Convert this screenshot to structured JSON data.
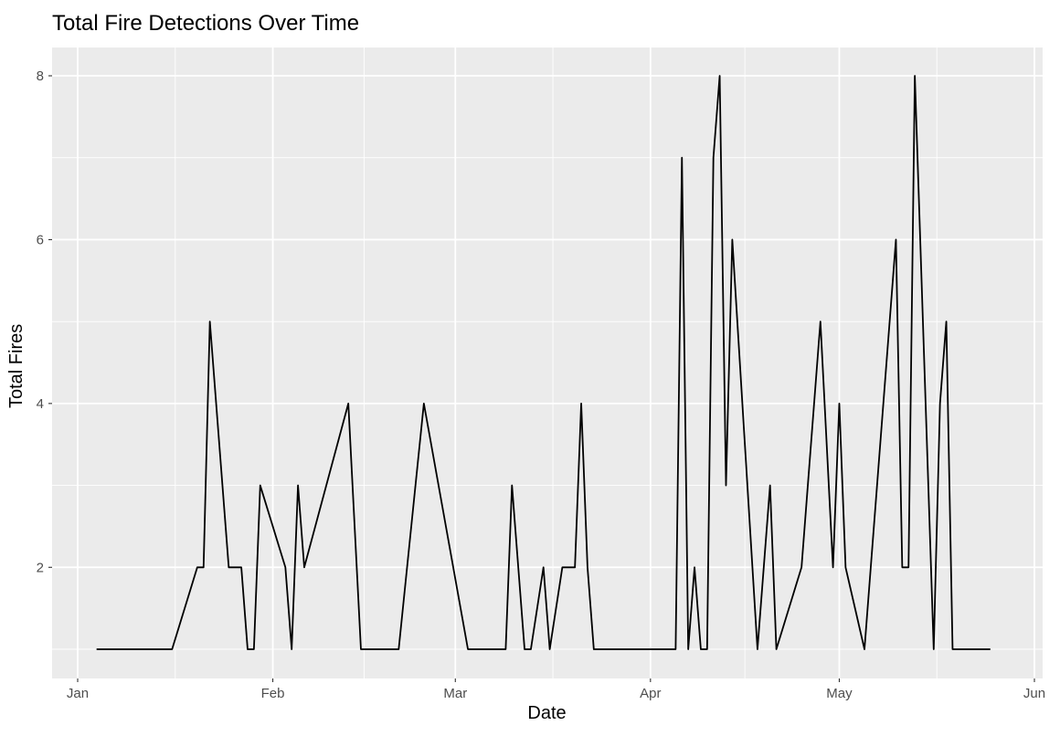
{
  "chart_data": {
    "type": "line",
    "title": "Total Fire Detections Over Time",
    "xlabel": "Date",
    "ylabel": "Total Fires",
    "x_ticks": [
      {
        "label": "Jan",
        "date": "2024-01-01"
      },
      {
        "label": "Feb",
        "date": "2024-02-01"
      },
      {
        "label": "Mar",
        "date": "2024-03-01"
      },
      {
        "label": "Apr",
        "date": "2024-04-01"
      },
      {
        "label": "May",
        "date": "2024-05-01"
      },
      {
        "label": "Jun",
        "date": "2024-06-01"
      }
    ],
    "y_ticks": [
      2,
      4,
      6,
      8
    ],
    "xlim": [
      "2023-12-27",
      "2024-06-01"
    ],
    "ylim": [
      0.6,
      8.4
    ],
    "grid": true,
    "background_color": "#ebebeb",
    "grid_color": "#ffffff",
    "line_color": "#000000",
    "x": [
      "2024-01-04",
      "2024-01-16",
      "2024-01-20",
      "2024-01-21",
      "2024-01-22",
      "2024-01-25",
      "2024-01-27",
      "2024-01-28",
      "2024-01-29",
      "2024-01-30",
      "2024-02-03",
      "2024-02-04",
      "2024-02-05",
      "2024-02-06",
      "2024-02-13",
      "2024-02-15",
      "2024-02-21",
      "2024-02-25",
      "2024-03-03",
      "2024-03-09",
      "2024-03-10",
      "2024-03-12",
      "2024-03-13",
      "2024-03-15",
      "2024-03-16",
      "2024-03-18",
      "2024-03-20",
      "2024-03-21",
      "2024-03-22",
      "2024-03-23",
      "2024-04-05",
      "2024-04-06",
      "2024-04-07",
      "2024-04-08",
      "2024-04-09",
      "2024-04-10",
      "2024-04-11",
      "2024-04-12",
      "2024-04-13",
      "2024-04-14",
      "2024-04-18",
      "2024-04-20",
      "2024-04-21",
      "2024-04-25",
      "2024-04-28",
      "2024-04-30",
      "2024-05-01",
      "2024-05-02",
      "2024-05-05",
      "2024-05-09",
      "2024-05-10",
      "2024-05-11",
      "2024-05-12",
      "2024-05-13",
      "2024-05-16",
      "2024-05-17",
      "2024-05-18",
      "2024-05-19",
      "2024-05-25"
    ],
    "y": [
      1,
      1,
      2,
      2,
      5,
      2,
      2,
      1,
      1,
      3,
      2,
      1,
      3,
      2,
      4,
      1,
      1,
      4,
      1,
      1,
      3,
      1,
      1,
      2,
      1,
      2,
      2,
      4,
      2,
      1,
      1,
      7,
      1,
      2,
      1,
      1,
      7,
      8,
      3,
      6,
      1,
      3,
      1,
      2,
      5,
      2,
      4,
      2,
      1,
      5,
      6,
      2,
      2,
      8,
      1,
      4,
      5,
      1,
      1
    ]
  }
}
